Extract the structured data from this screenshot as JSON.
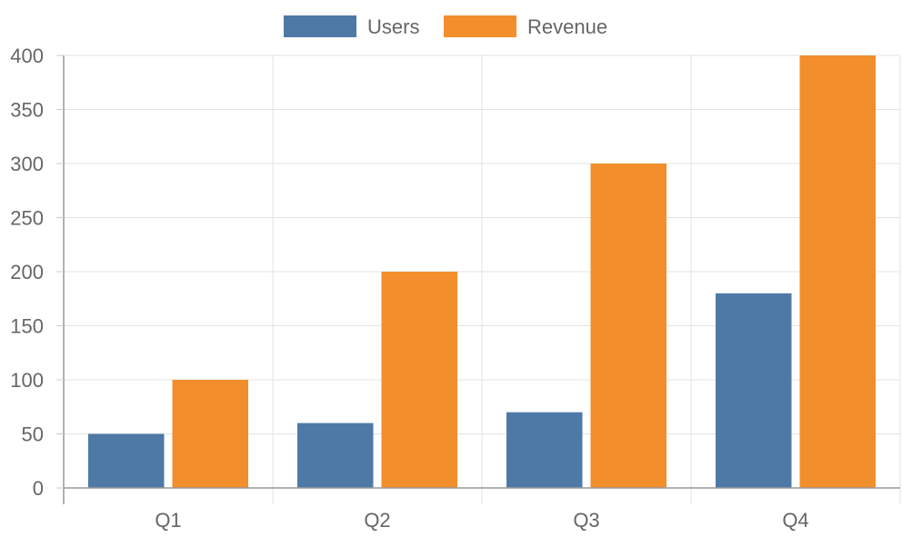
{
  "chart_data": {
    "type": "bar",
    "categories": [
      "Q1",
      "Q2",
      "Q3",
      "Q4"
    ],
    "series": [
      {
        "name": "Users",
        "values": [
          50,
          60,
          70,
          180
        ],
        "color": "#4e79a7"
      },
      {
        "name": "Revenue",
        "values": [
          100,
          200,
          300,
          400
        ],
        "color": "#f28e2b"
      }
    ],
    "ylim": [
      0,
      400
    ],
    "yticks": [
      0,
      50,
      100,
      150,
      200,
      250,
      300,
      350,
      400
    ],
    "grid": true,
    "legend_position": "top"
  }
}
